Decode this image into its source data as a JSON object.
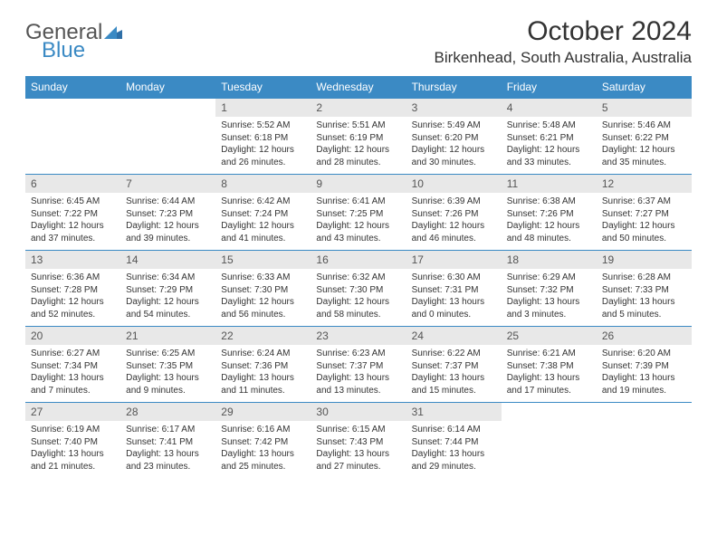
{
  "logo": {
    "line1": "General",
    "line2": "Blue"
  },
  "title": "October 2024",
  "location": "Birkenhead, South Australia, Australia",
  "colors": {
    "header_bg": "#3b8ac4",
    "header_fg": "#ffffff",
    "daynum_bg": "#e8e8e8",
    "text": "#333333",
    "row_border": "#3b8ac4"
  },
  "weekdays": [
    "Sunday",
    "Monday",
    "Tuesday",
    "Wednesday",
    "Thursday",
    "Friday",
    "Saturday"
  ],
  "weeks": [
    [
      {
        "n": "",
        "sr": "",
        "ss": "",
        "dl": ""
      },
      {
        "n": "",
        "sr": "",
        "ss": "",
        "dl": ""
      },
      {
        "n": "1",
        "sr": "Sunrise: 5:52 AM",
        "ss": "Sunset: 6:18 PM",
        "dl": "Daylight: 12 hours and 26 minutes."
      },
      {
        "n": "2",
        "sr": "Sunrise: 5:51 AM",
        "ss": "Sunset: 6:19 PM",
        "dl": "Daylight: 12 hours and 28 minutes."
      },
      {
        "n": "3",
        "sr": "Sunrise: 5:49 AM",
        "ss": "Sunset: 6:20 PM",
        "dl": "Daylight: 12 hours and 30 minutes."
      },
      {
        "n": "4",
        "sr": "Sunrise: 5:48 AM",
        "ss": "Sunset: 6:21 PM",
        "dl": "Daylight: 12 hours and 33 minutes."
      },
      {
        "n": "5",
        "sr": "Sunrise: 5:46 AM",
        "ss": "Sunset: 6:22 PM",
        "dl": "Daylight: 12 hours and 35 minutes."
      }
    ],
    [
      {
        "n": "6",
        "sr": "Sunrise: 6:45 AM",
        "ss": "Sunset: 7:22 PM",
        "dl": "Daylight: 12 hours and 37 minutes."
      },
      {
        "n": "7",
        "sr": "Sunrise: 6:44 AM",
        "ss": "Sunset: 7:23 PM",
        "dl": "Daylight: 12 hours and 39 minutes."
      },
      {
        "n": "8",
        "sr": "Sunrise: 6:42 AM",
        "ss": "Sunset: 7:24 PM",
        "dl": "Daylight: 12 hours and 41 minutes."
      },
      {
        "n": "9",
        "sr": "Sunrise: 6:41 AM",
        "ss": "Sunset: 7:25 PM",
        "dl": "Daylight: 12 hours and 43 minutes."
      },
      {
        "n": "10",
        "sr": "Sunrise: 6:39 AM",
        "ss": "Sunset: 7:26 PM",
        "dl": "Daylight: 12 hours and 46 minutes."
      },
      {
        "n": "11",
        "sr": "Sunrise: 6:38 AM",
        "ss": "Sunset: 7:26 PM",
        "dl": "Daylight: 12 hours and 48 minutes."
      },
      {
        "n": "12",
        "sr": "Sunrise: 6:37 AM",
        "ss": "Sunset: 7:27 PM",
        "dl": "Daylight: 12 hours and 50 minutes."
      }
    ],
    [
      {
        "n": "13",
        "sr": "Sunrise: 6:36 AM",
        "ss": "Sunset: 7:28 PM",
        "dl": "Daylight: 12 hours and 52 minutes."
      },
      {
        "n": "14",
        "sr": "Sunrise: 6:34 AM",
        "ss": "Sunset: 7:29 PM",
        "dl": "Daylight: 12 hours and 54 minutes."
      },
      {
        "n": "15",
        "sr": "Sunrise: 6:33 AM",
        "ss": "Sunset: 7:30 PM",
        "dl": "Daylight: 12 hours and 56 minutes."
      },
      {
        "n": "16",
        "sr": "Sunrise: 6:32 AM",
        "ss": "Sunset: 7:30 PM",
        "dl": "Daylight: 12 hours and 58 minutes."
      },
      {
        "n": "17",
        "sr": "Sunrise: 6:30 AM",
        "ss": "Sunset: 7:31 PM",
        "dl": "Daylight: 13 hours and 0 minutes."
      },
      {
        "n": "18",
        "sr": "Sunrise: 6:29 AM",
        "ss": "Sunset: 7:32 PM",
        "dl": "Daylight: 13 hours and 3 minutes."
      },
      {
        "n": "19",
        "sr": "Sunrise: 6:28 AM",
        "ss": "Sunset: 7:33 PM",
        "dl": "Daylight: 13 hours and 5 minutes."
      }
    ],
    [
      {
        "n": "20",
        "sr": "Sunrise: 6:27 AM",
        "ss": "Sunset: 7:34 PM",
        "dl": "Daylight: 13 hours and 7 minutes."
      },
      {
        "n": "21",
        "sr": "Sunrise: 6:25 AM",
        "ss": "Sunset: 7:35 PM",
        "dl": "Daylight: 13 hours and 9 minutes."
      },
      {
        "n": "22",
        "sr": "Sunrise: 6:24 AM",
        "ss": "Sunset: 7:36 PM",
        "dl": "Daylight: 13 hours and 11 minutes."
      },
      {
        "n": "23",
        "sr": "Sunrise: 6:23 AM",
        "ss": "Sunset: 7:37 PM",
        "dl": "Daylight: 13 hours and 13 minutes."
      },
      {
        "n": "24",
        "sr": "Sunrise: 6:22 AM",
        "ss": "Sunset: 7:37 PM",
        "dl": "Daylight: 13 hours and 15 minutes."
      },
      {
        "n": "25",
        "sr": "Sunrise: 6:21 AM",
        "ss": "Sunset: 7:38 PM",
        "dl": "Daylight: 13 hours and 17 minutes."
      },
      {
        "n": "26",
        "sr": "Sunrise: 6:20 AM",
        "ss": "Sunset: 7:39 PM",
        "dl": "Daylight: 13 hours and 19 minutes."
      }
    ],
    [
      {
        "n": "27",
        "sr": "Sunrise: 6:19 AM",
        "ss": "Sunset: 7:40 PM",
        "dl": "Daylight: 13 hours and 21 minutes."
      },
      {
        "n": "28",
        "sr": "Sunrise: 6:17 AM",
        "ss": "Sunset: 7:41 PM",
        "dl": "Daylight: 13 hours and 23 minutes."
      },
      {
        "n": "29",
        "sr": "Sunrise: 6:16 AM",
        "ss": "Sunset: 7:42 PM",
        "dl": "Daylight: 13 hours and 25 minutes."
      },
      {
        "n": "30",
        "sr": "Sunrise: 6:15 AM",
        "ss": "Sunset: 7:43 PM",
        "dl": "Daylight: 13 hours and 27 minutes."
      },
      {
        "n": "31",
        "sr": "Sunrise: 6:14 AM",
        "ss": "Sunset: 7:44 PM",
        "dl": "Daylight: 13 hours and 29 minutes."
      },
      {
        "n": "",
        "sr": "",
        "ss": "",
        "dl": ""
      },
      {
        "n": "",
        "sr": "",
        "ss": "",
        "dl": ""
      }
    ]
  ]
}
